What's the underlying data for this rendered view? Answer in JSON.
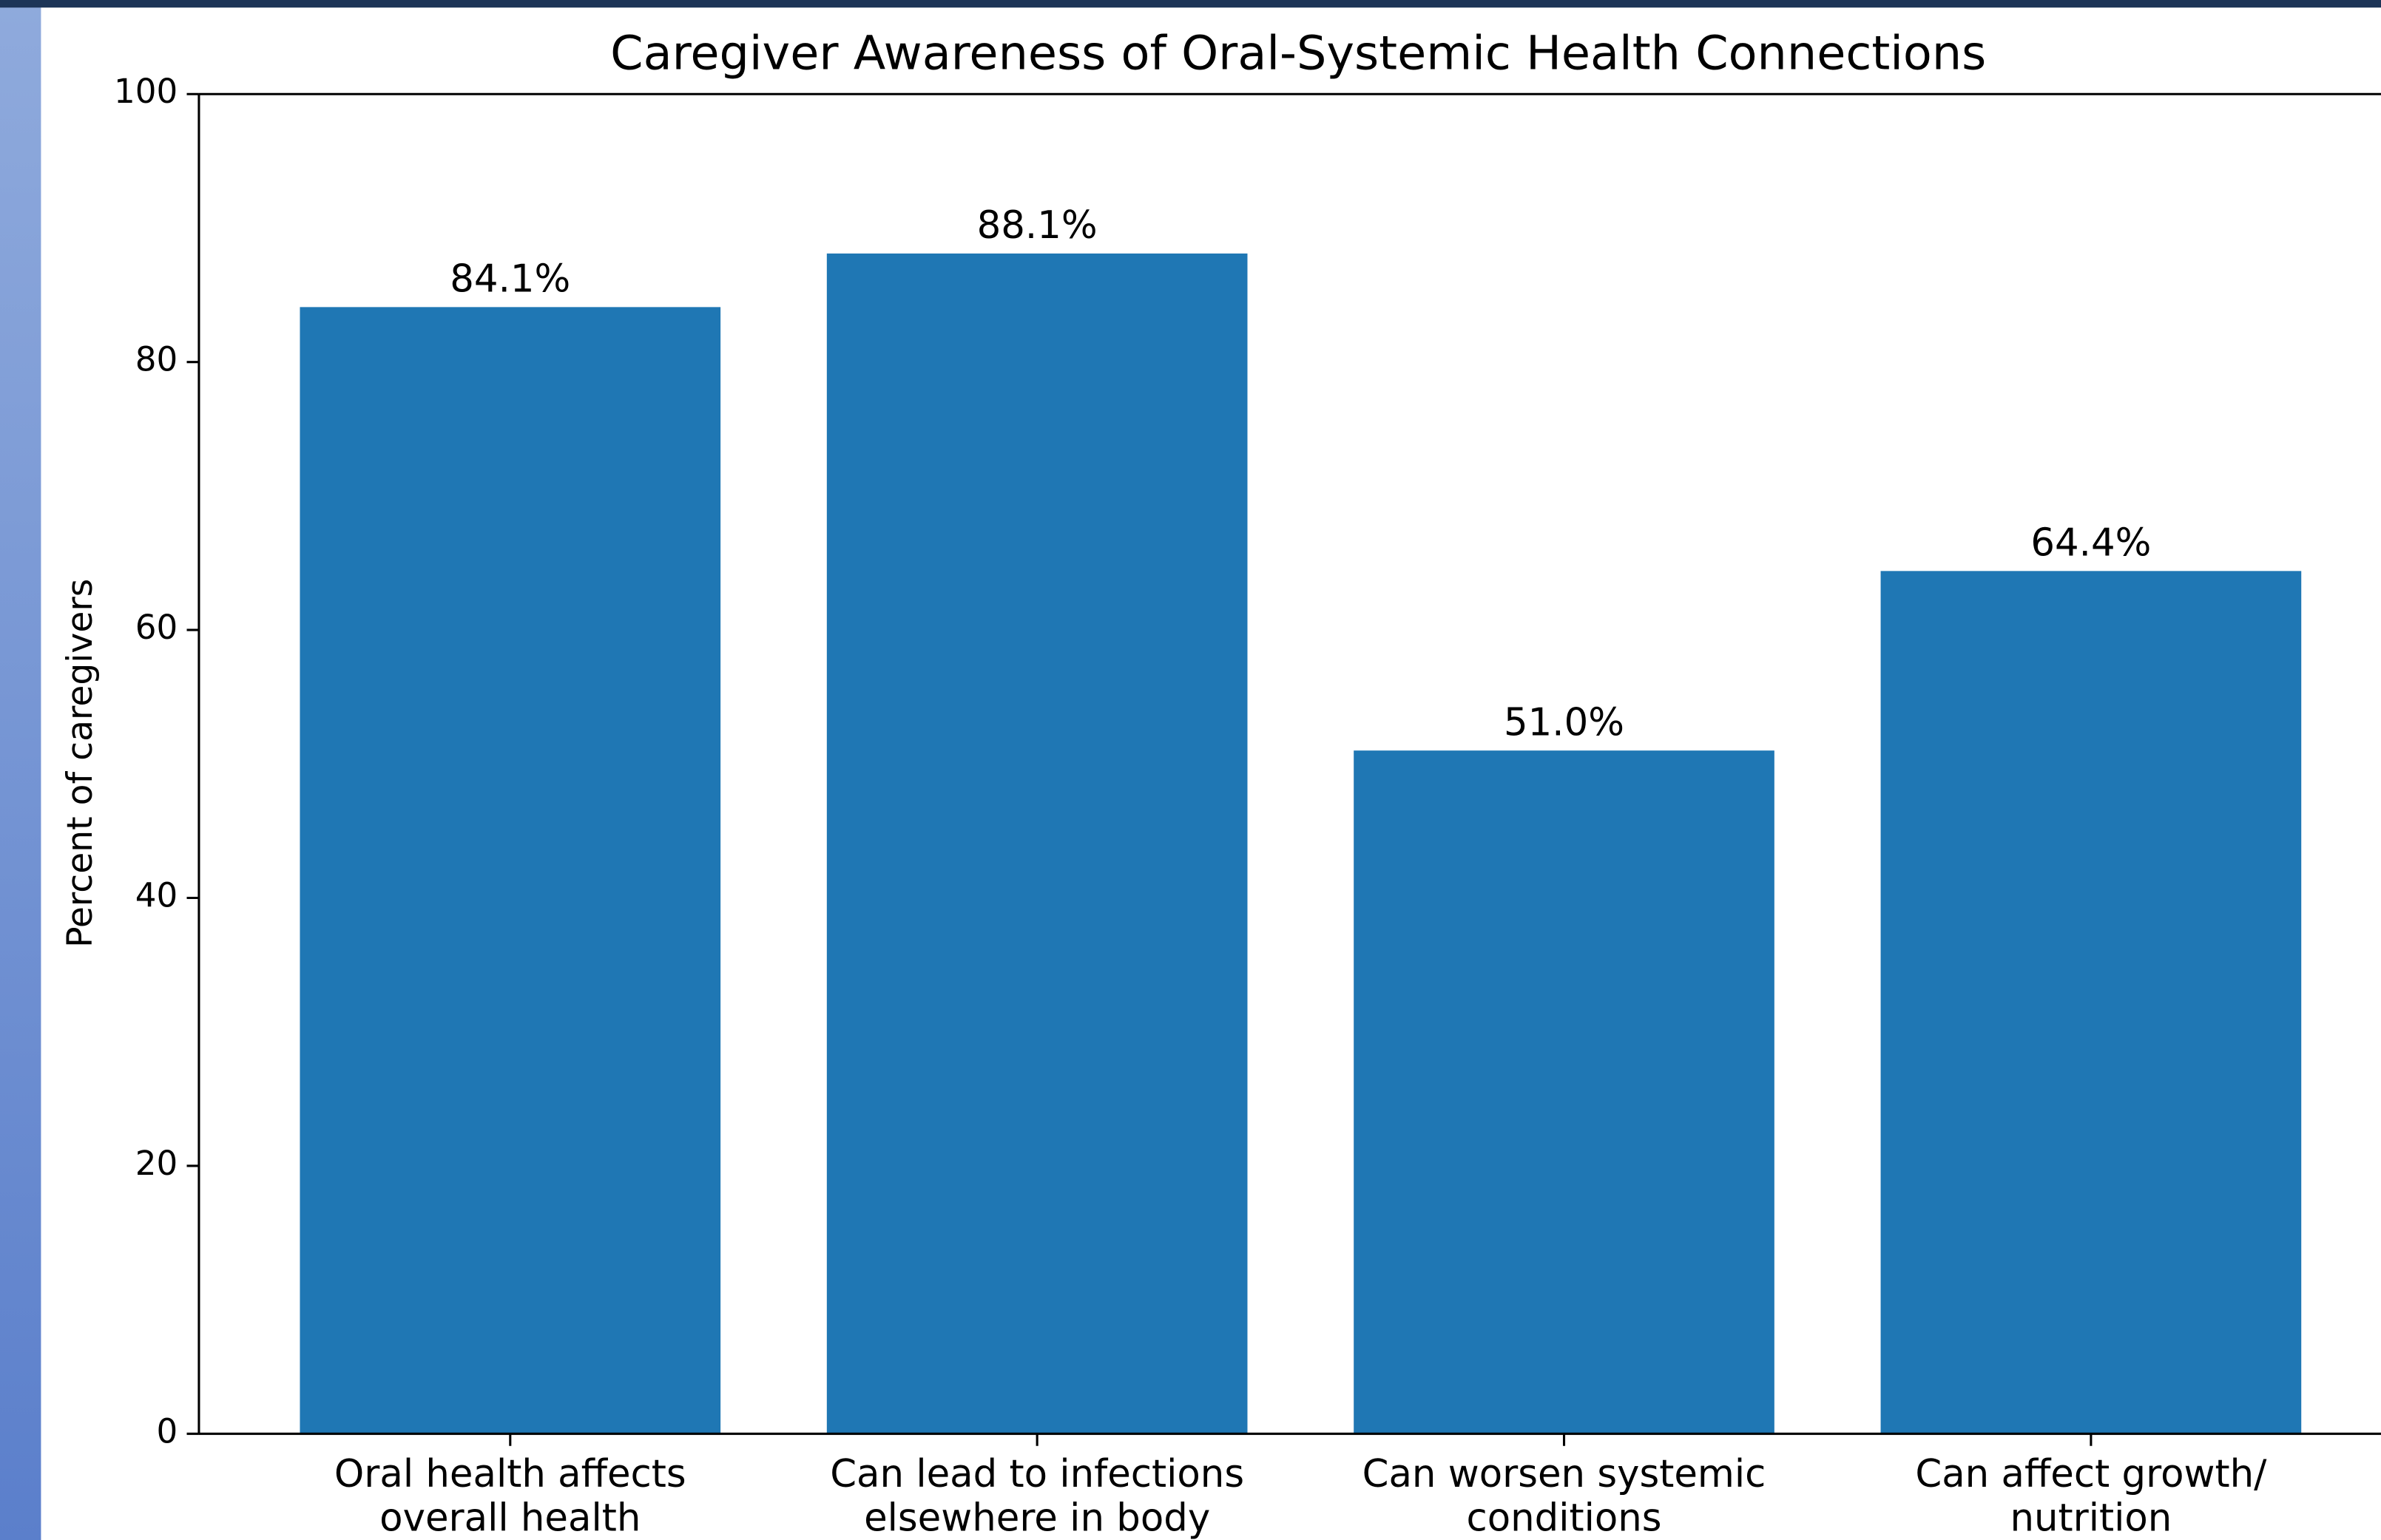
{
  "chart_data": {
    "type": "bar",
    "title": "Caregiver Awareness of Oral-Systemic Health Connections",
    "y_label": "Percent of caregivers",
    "categories": [
      "Oral health affects\noverall health",
      "Can lead to infections\nelsewhere in body",
      "Can worsen systemic\nconditions",
      "Can affect growth/\nnutrition"
    ],
    "values": [
      84.1,
      88.1,
      51.0,
      64.4
    ],
    "value_labels": [
      "84.1%",
      "88.1%",
      "51.0%",
      "64.4%"
    ],
    "color": "#1f77b4",
    "ylim": [
      0,
      100
    ],
    "yticks": [
      0,
      20,
      40,
      60,
      80,
      100
    ]
  }
}
